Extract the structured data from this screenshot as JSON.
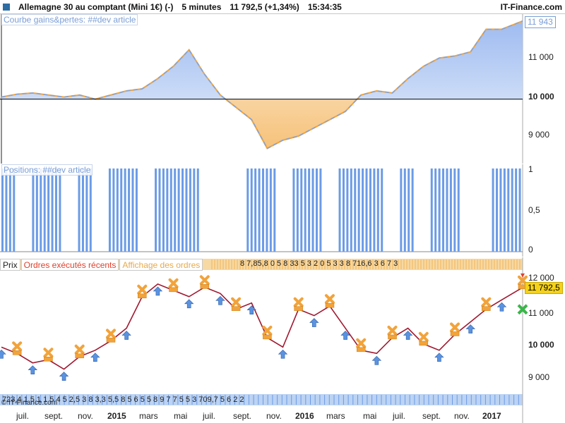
{
  "title": {
    "instrument": "Allemagne 30 au comptant (Mini 1€) (-)",
    "timeframe": "5 minutes",
    "last": "11 792,5 (+1,34%)",
    "time": "15:34:35",
    "brand": "IT-Finance.com"
  },
  "equity_panel": {
    "label": "Courbe gains&pertes: ##dev article",
    "value_box": "11 943",
    "y_labels": [
      "11 000",
      "10 000",
      "9 000"
    ],
    "colors": {
      "gain": "#7aa4e6",
      "loss": "#f2a33a"
    }
  },
  "positions_panel": {
    "label": "Positions: ##dev article",
    "y_labels": [
      "1",
      "0,5",
      "0"
    ],
    "color": "#6b9be6"
  },
  "price_panel": {
    "tabs": [
      "Prix",
      "Ordres exécutés récents",
      "Affichage des ordres"
    ],
    "value_box": "11 792,5",
    "y_labels": [
      "12 000",
      "11 000",
      "10 000",
      "9 000"
    ],
    "order_strip_top": "8   7,85,8   0 5 8 33   5 3 2 0 5 3 3 8   716,6 3 6 7 3",
    "order_strip_bottom": "723,4 1 5 1   1 5 4   5 2,5   3 8   3,3 5,5 8   5 6 5 5 8 9   7 7 5 5 3   709,7 5 6 2 2"
  },
  "x_axis": [
    "juil.",
    "sept.",
    "nov.",
    "2015",
    "mars",
    "mai",
    "juil.",
    "sept.",
    "nov.",
    "2016",
    "mars",
    "mai",
    "juil.",
    "sept.",
    "nov.",
    "2017"
  ],
  "watermark": "© IT-Finance.com",
  "chart_data": [
    {
      "type": "area",
      "title": "Courbe gains&pertes: ##dev article",
      "baseline": 10000,
      "ylim": [
        8500,
        12000
      ],
      "x": [
        0,
        0.03,
        0.06,
        0.09,
        0.12,
        0.15,
        0.18,
        0.21,
        0.24,
        0.27,
        0.3,
        0.33,
        0.36,
        0.39,
        0.42,
        0.45,
        0.48,
        0.51,
        0.54,
        0.57,
        0.6,
        0.63,
        0.66,
        0.69,
        0.72,
        0.75,
        0.78,
        0.81,
        0.84,
        0.87,
        0.9,
        0.93,
        0.96,
        1.0
      ],
      "values": [
        10050,
        10120,
        10150,
        10100,
        10050,
        10100,
        10000,
        10100,
        10200,
        10250,
        10500,
        10800,
        11200,
        10600,
        10100,
        9800,
        9500,
        8800,
        9000,
        9100,
        9300,
        9500,
        9700,
        10100,
        10200,
        10150,
        10500,
        10800,
        11000,
        11050,
        11150,
        11700,
        11700,
        11900
      ]
    },
    {
      "type": "bar",
      "title": "Positions: ##dev article",
      "ylim": [
        0,
        1
      ],
      "values": [
        1,
        0,
        1,
        1,
        0,
        1,
        0,
        1,
        1,
        0,
        1,
        1,
        1,
        0,
        0,
        0,
        1,
        1,
        0,
        1,
        1,
        0,
        1,
        1,
        1,
        0,
        1,
        0,
        1,
        1,
        0,
        0,
        1,
        1
      ]
    },
    {
      "type": "line",
      "title": "Prix",
      "ylim": [
        8500,
        12300
      ],
      "x": [
        0,
        0.03,
        0.06,
        0.09,
        0.12,
        0.15,
        0.18,
        0.21,
        0.24,
        0.27,
        0.3,
        0.33,
        0.36,
        0.39,
        0.42,
        0.45,
        0.48,
        0.51,
        0.54,
        0.57,
        0.6,
        0.63,
        0.66,
        0.69,
        0.72,
        0.75,
        0.78,
        0.81,
        0.84,
        0.87,
        0.9,
        0.93,
        0.96,
        1.0
      ],
      "values": [
        9900,
        9700,
        9400,
        9500,
        9200,
        9600,
        9800,
        10100,
        10500,
        11500,
        11900,
        11700,
        11500,
        11800,
        11600,
        11100,
        11300,
        10200,
        9900,
        11100,
        10900,
        11200,
        10500,
        9800,
        9700,
        10200,
        10500,
        10000,
        9800,
        10300,
        10700,
        11100,
        11400,
        11790
      ]
    }
  ]
}
